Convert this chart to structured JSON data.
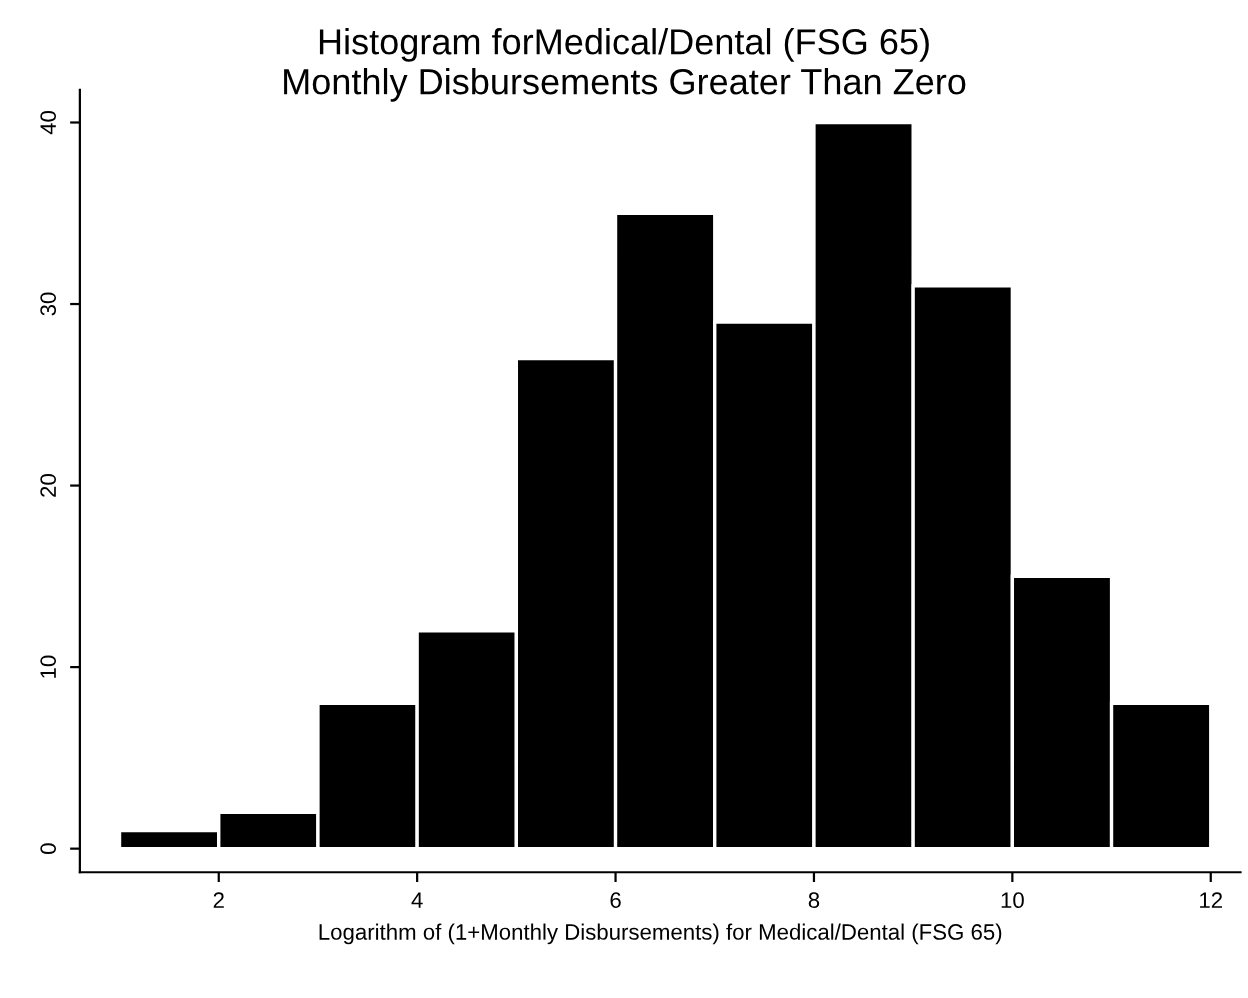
{
  "chart_data": {
    "type": "histogram",
    "title": "Histogram forMedical/Dental (FSG 65)",
    "subtitle": "Monthly Disbursements Greater Than Zero",
    "xlabel": "Logarithm of (1+Monthly Disbursements) for Medical/Dental (FSG 65)",
    "bins": [
      1,
      2,
      3,
      4,
      5,
      6,
      7,
      8,
      9,
      10,
      11,
      12
    ],
    "values": [
      1,
      2,
      8,
      12,
      27,
      35,
      29,
      40,
      31,
      15,
      8
    ],
    "color": "#000000",
    "xlim": [
      0.6,
      12.3
    ],
    "ylim": [
      -1.3,
      41.8
    ],
    "xticks": [
      2,
      4,
      6,
      8,
      10,
      12
    ],
    "yticks": [
      0,
      10,
      20,
      30,
      40
    ],
    "grid": false
  }
}
